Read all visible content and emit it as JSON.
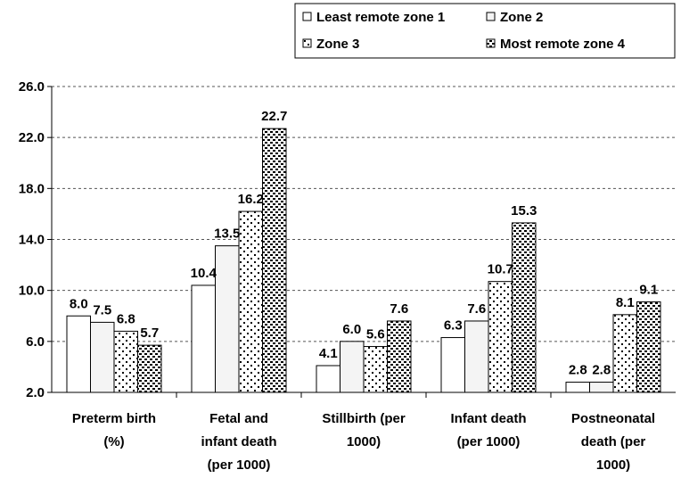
{
  "chart_data": {
    "type": "bar",
    "title": "",
    "xlabel": "",
    "ylabel": "",
    "ylim": [
      2.0,
      26.0
    ],
    "yticks": [
      2.0,
      6.0,
      10.0,
      14.0,
      18.0,
      22.0,
      26.0
    ],
    "ytick_labels": [
      "2.0",
      "6.0",
      "10.0",
      "14.0",
      "18.0",
      "22.0",
      "26.0"
    ],
    "grid": "horizontal dashed",
    "legend_position": "top-right",
    "categories": [
      [
        "Preterm birth",
        "(%)"
      ],
      [
        "Fetal and",
        "infant death",
        "(per 1000)"
      ],
      [
        "Stillbirth (per",
        "1000)"
      ],
      [
        "Infant death",
        "(per 1000)"
      ],
      [
        "Postneonatal",
        "death (per",
        "1000)"
      ]
    ],
    "series": [
      {
        "name": "Least remote zone 1",
        "pattern": "white",
        "values": [
          8.0,
          10.4,
          4.1,
          6.3,
          2.8
        ],
        "labels": [
          "8.0",
          "10.4",
          "4.1",
          "6.3",
          "2.8"
        ]
      },
      {
        "name": "Zone 2",
        "pattern": "light",
        "values": [
          7.5,
          13.5,
          6.0,
          7.6,
          2.8
        ],
        "labels": [
          "7.5",
          "13.5",
          "6.0",
          "7.6",
          "2.8"
        ]
      },
      {
        "name": "Zone 3",
        "pattern": "dots",
        "values": [
          6.8,
          16.2,
          5.6,
          10.7,
          8.1
        ],
        "labels": [
          "6.8",
          "16.2",
          "5.6",
          "10.7",
          "8.1"
        ]
      },
      {
        "name": "Most remote zone 4",
        "pattern": "dense",
        "values": [
          5.7,
          22.7,
          7.6,
          15.3,
          9.1
        ],
        "labels": [
          "5.7",
          "22.7",
          "7.6",
          "15.3",
          "9.1"
        ]
      }
    ]
  }
}
